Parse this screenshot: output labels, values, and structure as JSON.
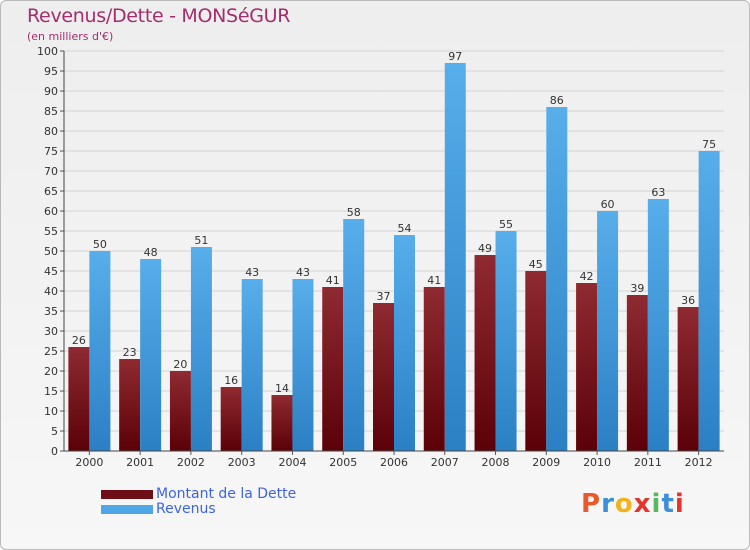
{
  "chart_data": {
    "type": "bar",
    "title": "Revenus/Dette - MONSéGUR",
    "subtitle": "(en milliers d'€)",
    "categories": [
      "2000",
      "2001",
      "2002",
      "2003",
      "2004",
      "2005",
      "2006",
      "2007",
      "2008",
      "2009",
      "2010",
      "2011",
      "2012"
    ],
    "series": [
      {
        "name": "Montant de la Dette",
        "color": "#6e0f17",
        "values": [
          26,
          23,
          20,
          16,
          14,
          41,
          37,
          41,
          49,
          45,
          42,
          39,
          36
        ]
      },
      {
        "name": "Revenus",
        "color": "#4fa6e6",
        "values": [
          50,
          48,
          51,
          43,
          43,
          58,
          54,
          97,
          55,
          86,
          60,
          63,
          75
        ]
      }
    ],
    "ylim": [
      0,
      100
    ],
    "yticks": [
      0,
      5,
      10,
      15,
      20,
      25,
      30,
      35,
      40,
      45,
      50,
      55,
      60,
      65,
      70,
      75,
      80,
      85,
      90,
      95,
      100
    ],
    "grid": true,
    "legend_position": "bottom-left"
  },
  "brand": {
    "letters": [
      "P",
      "r",
      "o",
      "x",
      "i",
      "t",
      "i"
    ],
    "colors": [
      "#e85a2a",
      "#3a8fd6",
      "#f2b21b",
      "#e8322c",
      "#5cb85c",
      "#3a8fd6",
      "#e8322c"
    ]
  }
}
